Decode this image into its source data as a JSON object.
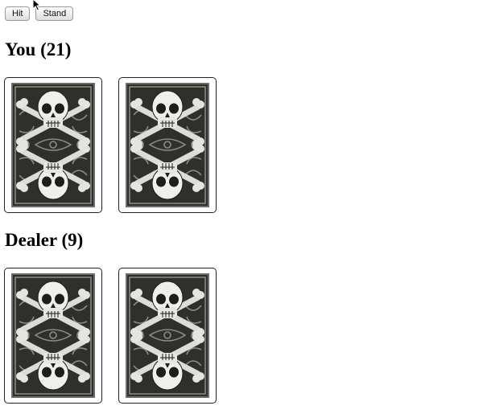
{
  "controls": {
    "hit_label": "Hit",
    "stand_label": "Stand"
  },
  "player": {
    "heading": "You (21)",
    "cards": [
      {
        "face": "back"
      },
      {
        "face": "back"
      }
    ]
  },
  "dealer": {
    "heading": "Dealer (9)",
    "cards": [
      {
        "face": "back"
      },
      {
        "face": "back"
      }
    ]
  },
  "card_back_design": "skull-and-crossbones-icon",
  "colors": {
    "card_back_dark": "#3a3b37",
    "card_back_ornament": "#8b8d86",
    "skull": "#e9e9e6",
    "card_border": "#222222"
  }
}
